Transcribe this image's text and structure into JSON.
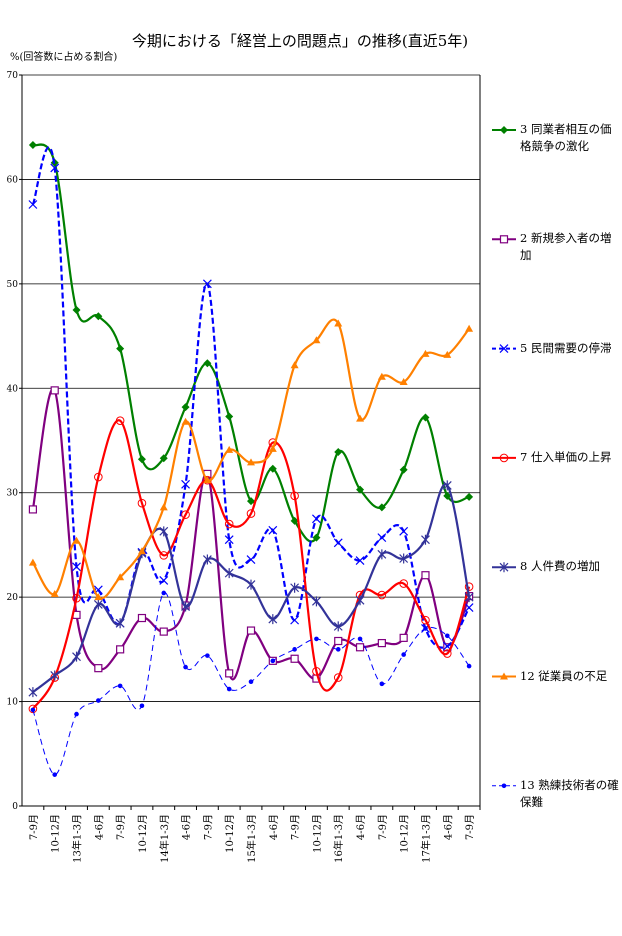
{
  "chart_data": {
    "type": "line",
    "title": "今期における「経営上の問題点」の推移(直近5年)",
    "y_label": "%(回答数に占める割合)",
    "categories": [
      "7-9月",
      "10-12月",
      "13年1-3月",
      "4-6月",
      "7-9月",
      "10-12月",
      "14年1-3月",
      "4-6月",
      "7-9月",
      "10-12月",
      "15年1-3月",
      "4-6月",
      "7-9月",
      "10-12月",
      "16年1-3月",
      "4-6月",
      "7-9月",
      "10-12月",
      "17年1-3月",
      "4-6月",
      "7-9月"
    ],
    "ylim": [
      0,
      70
    ],
    "yticks": [
      0,
      10,
      20,
      30,
      40,
      50,
      60,
      70
    ],
    "grid": true,
    "legend": "right",
    "series": [
      {
        "name": "3 同業者相互の価格競争の激化",
        "color": "#008000",
        "marker": "diamond",
        "line_style": "solid",
        "values": [
          63.3,
          61.6,
          47.5,
          46.9,
          43.8,
          33.2,
          33.3,
          38.2,
          42.4,
          37.3,
          29.2,
          32.3,
          27.3,
          25.7,
          33.9,
          30.3,
          28.6,
          32.2,
          37.2,
          29.7,
          29.6
        ]
      },
      {
        "name": "2 新規参入者の増加",
        "color": "#800080",
        "marker": "square",
        "line_style": "solid",
        "values": [
          28.4,
          39.8,
          18.3,
          13.2,
          15.0,
          18.0,
          16.7,
          19.2,
          31.8,
          12.7,
          16.8,
          13.9,
          14.1,
          12.2,
          15.8,
          15.2,
          15.6,
          16.1,
          22.1,
          15.2,
          20.1
        ]
      },
      {
        "name": "5 民間需要の停滞",
        "color": "#0000ff",
        "marker": "x",
        "line_style": "dashed",
        "values": [
          57.6,
          61.1,
          22.9,
          20.7,
          17.5,
          24.3,
          21.6,
          30.8,
          50.0,
          25.5,
          23.6,
          26.4,
          17.8,
          27.5,
          25.2,
          23.5,
          25.7,
          26.3,
          17.0,
          15.3,
          19.0
        ]
      },
      {
        "name": "7 仕入単価の上昇",
        "color": "#ff0000",
        "marker": "circle",
        "line_style": "solid",
        "values": [
          9.3,
          12.3,
          19.9,
          31.5,
          36.9,
          29.0,
          24.0,
          27.9,
          31.2,
          27.0,
          28.0,
          34.8,
          29.7,
          12.9,
          12.3,
          20.2,
          20.2,
          21.3,
          17.8,
          14.6,
          21.0
        ]
      },
      {
        "name": "8 人件費の増加",
        "color": "#333399",
        "marker": "star",
        "line_style": "solid",
        "values": [
          10.9,
          12.5,
          14.3,
          19.3,
          17.5,
          24.2,
          26.3,
          19.1,
          23.6,
          22.3,
          21.2,
          17.9,
          20.9,
          19.6,
          17.2,
          19.7,
          24.1,
          23.7,
          25.5,
          30.7,
          20.0
        ]
      },
      {
        "name": "12 従業員の不足",
        "color": "#ff8000",
        "marker": "triangle",
        "line_style": "solid",
        "values": [
          23.3,
          20.3,
          25.4,
          20.0,
          21.9,
          24.4,
          28.6,
          36.8,
          31.2,
          34.1,
          32.9,
          34.2,
          42.2,
          44.6,
          46.2,
          37.1,
          41.1,
          40.6,
          43.3,
          43.2,
          45.7
        ]
      },
      {
        "name": "13 熟練技術者の確保難",
        "color": "#0000ff",
        "marker": "dot",
        "line_style": "thin-dashed",
        "values": [
          9.2,
          3.0,
          8.8,
          10.1,
          11.5,
          9.6,
          20.4,
          13.3,
          14.4,
          11.2,
          11.9,
          13.9,
          15.0,
          16.0,
          15.0,
          16.0,
          11.7,
          14.5,
          17.0,
          16.3,
          13.4
        ]
      }
    ]
  }
}
